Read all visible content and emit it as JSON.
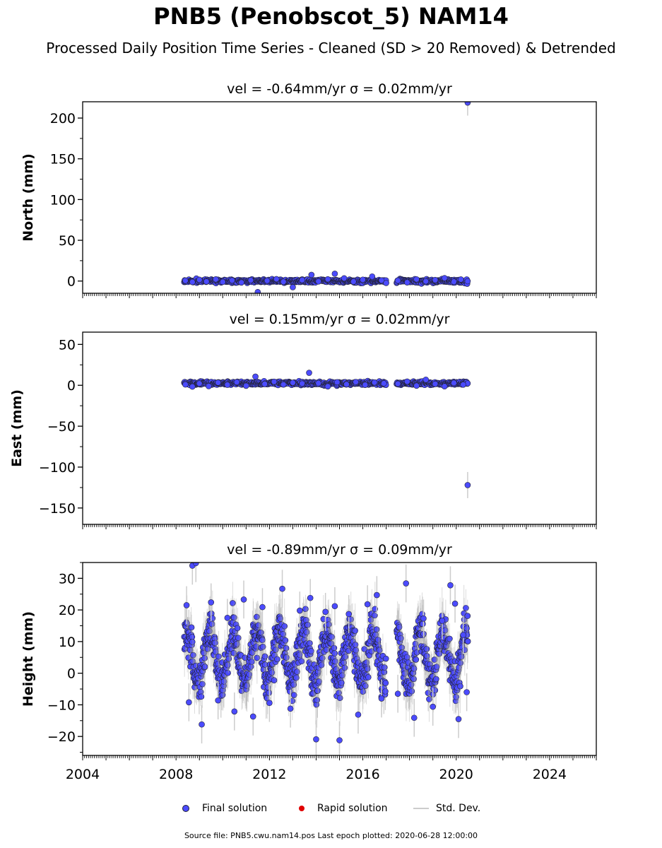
{
  "title": "PNB5 (Penobscot_5) NAM14",
  "subtitle": "Processed Daily Position Time Series - Cleaned (SD > 20 Removed) & Detrended",
  "source_note": "Source file: PNB5.cwu.nam14.pos  Last epoch plotted: 2020-06-28 12:00:00",
  "legend": {
    "final": "Final solution",
    "rapid": "Rapid solution",
    "std": "Std. Dev."
  },
  "colors": {
    "final": "#4b4bff",
    "rapid": "#e00000",
    "std": "#cccccc",
    "marker_edge": "#222233"
  },
  "chart_data": [
    {
      "type": "scatter",
      "ylabel": "North (mm)",
      "title": "vel = -0.64mm/yr   σ = 0.02mm/yr",
      "xlim": [
        2004,
        2026
      ],
      "ylim": [
        -15,
        220
      ],
      "yticks": [
        0,
        50,
        100,
        150,
        200
      ],
      "xticks": [
        2004,
        2008,
        2012,
        2016,
        2020,
        2024
      ],
      "show_xtick_labels": false,
      "series": [
        {
          "points": [
            [
              2008.4,
              0.5
            ],
            [
              2008.7,
              -1.2
            ],
            [
              2009.0,
              1.6
            ],
            [
              2009.3,
              -0.6
            ],
            [
              2009.7,
              2.1
            ],
            [
              2010.0,
              -1.1
            ],
            [
              2010.4,
              0.8
            ],
            [
              2010.8,
              -1.8
            ],
            [
              2011.2,
              1.0
            ],
            [
              2011.5,
              -13.5
            ],
            [
              2011.9,
              0.5
            ],
            [
              2012.3,
              2.4
            ],
            [
              2012.6,
              -0.9
            ],
            [
              2013.0,
              -7.6
            ],
            [
              2013.4,
              1.3
            ],
            [
              2013.8,
              7.6
            ],
            [
              2014.1,
              -0.5
            ],
            [
              2014.5,
              2.2
            ],
            [
              2014.8,
              9.0
            ],
            [
              2015.2,
              3.4
            ],
            [
              2015.6,
              -0.7
            ],
            [
              2016.0,
              1.7
            ],
            [
              2016.4,
              5.6
            ],
            [
              2016.8,
              0.8
            ],
            [
              2017.0,
              -2.4
            ],
            [
              2017.5,
              0.6
            ],
            [
              2017.9,
              -1.7
            ],
            [
              2018.3,
              2.1
            ],
            [
              2018.7,
              -0.3
            ],
            [
              2019.1,
              1.3
            ],
            [
              2019.5,
              3.6
            ],
            [
              2019.9,
              -0.8
            ],
            [
              2020.2,
              2.0
            ],
            [
              2020.49,
              219.0
            ]
          ]
        }
      ]
    },
    {
      "type": "scatter",
      "ylabel": "East (mm)",
      "title": "vel = 0.15mm/yr   σ = 0.02mm/yr",
      "xlim": [
        2004,
        2026
      ],
      "ylim": [
        -170,
        65
      ],
      "yticks": [
        -150,
        -100,
        -50,
        0,
        50
      ],
      "xticks": [
        2004,
        2008,
        2012,
        2016,
        2020,
        2024
      ],
      "show_xtick_labels": false,
      "series": [
        {
          "points": [
            [
              2008.4,
              1.0
            ],
            [
              2008.7,
              -1.6
            ],
            [
              2009.0,
              2.2
            ],
            [
              2009.4,
              -1.1
            ],
            [
              2009.8,
              3.3
            ],
            [
              2010.2,
              0.6
            ],
            [
              2010.6,
              3.9
            ],
            [
              2011.0,
              -0.6
            ],
            [
              2011.4,
              10.6
            ],
            [
              2011.8,
              1.6
            ],
            [
              2012.2,
              4.4
            ],
            [
              2012.6,
              0.9
            ],
            [
              2013.0,
              3.2
            ],
            [
              2013.4,
              2.1
            ],
            [
              2013.7,
              15.3
            ],
            [
              2014.1,
              2.6
            ],
            [
              2014.5,
              -1.4
            ],
            [
              2014.9,
              3.8
            ],
            [
              2015.3,
              1.2
            ],
            [
              2015.7,
              4.1
            ],
            [
              2016.1,
              0.5
            ],
            [
              2016.5,
              3.5
            ],
            [
              2016.9,
              2.4
            ],
            [
              2017.5,
              1.9
            ],
            [
              2017.9,
              4.6
            ],
            [
              2018.3,
              -0.5
            ],
            [
              2018.7,
              6.9
            ],
            [
              2019.1,
              1.7
            ],
            [
              2019.5,
              -1.3
            ],
            [
              2019.9,
              2.9
            ],
            [
              2020.3,
              0.8
            ],
            [
              2020.49,
              -122.0
            ]
          ]
        }
      ]
    },
    {
      "type": "scatter",
      "ylabel": "Height (mm)",
      "title": "vel = -0.89mm/yr   σ = 0.09mm/yr",
      "xlim": [
        2004,
        2026
      ],
      "ylim": [
        -26,
        35
      ],
      "yticks": [
        -20,
        -10,
        0,
        10,
        20,
        30
      ],
      "xticks": [
        2004,
        2008,
        2012,
        2016,
        2020,
        2024
      ],
      "show_xtick_labels": true,
      "series": [
        {
          "points": [
            [
              2008.45,
              21.5
            ],
            [
              2008.55,
              -9.2
            ],
            [
              2008.7,
              34.0
            ],
            [
              2008.85,
              34.8
            ],
            [
              2009.1,
              -16.2
            ],
            [
              2009.5,
              22.4
            ],
            [
              2009.8,
              -8.6
            ],
            [
              2010.2,
              17.5
            ],
            [
              2010.5,
              -12.1
            ],
            [
              2010.9,
              23.3
            ],
            [
              2011.3,
              -13.7
            ],
            [
              2011.7,
              20.9
            ],
            [
              2012.0,
              -9.4
            ],
            [
              2012.55,
              26.7
            ],
            [
              2012.9,
              -11.2
            ],
            [
              2013.3,
              19.8
            ],
            [
              2013.75,
              23.8
            ],
            [
              2014.0,
              -20.9
            ],
            [
              2014.4,
              19.4
            ],
            [
              2014.8,
              21.2
            ],
            [
              2015.0,
              -21.2
            ],
            [
              2015.4,
              18.7
            ],
            [
              2015.8,
              -13.1
            ],
            [
              2016.2,
              21.8
            ],
            [
              2016.6,
              24.7
            ],
            [
              2016.8,
              -8.0
            ],
            [
              2017.5,
              -6.5
            ],
            [
              2017.85,
              28.4
            ],
            [
              2018.2,
              -14.1
            ],
            [
              2018.6,
              17.3
            ],
            [
              2019.0,
              -10.6
            ],
            [
              2019.4,
              16.6
            ],
            [
              2019.75,
              27.8
            ],
            [
              2019.95,
              22.0
            ],
            [
              2020.1,
              -14.5
            ],
            [
              2020.3,
              12.1
            ],
            [
              2020.45,
              -6.0
            ]
          ]
        }
      ]
    }
  ]
}
